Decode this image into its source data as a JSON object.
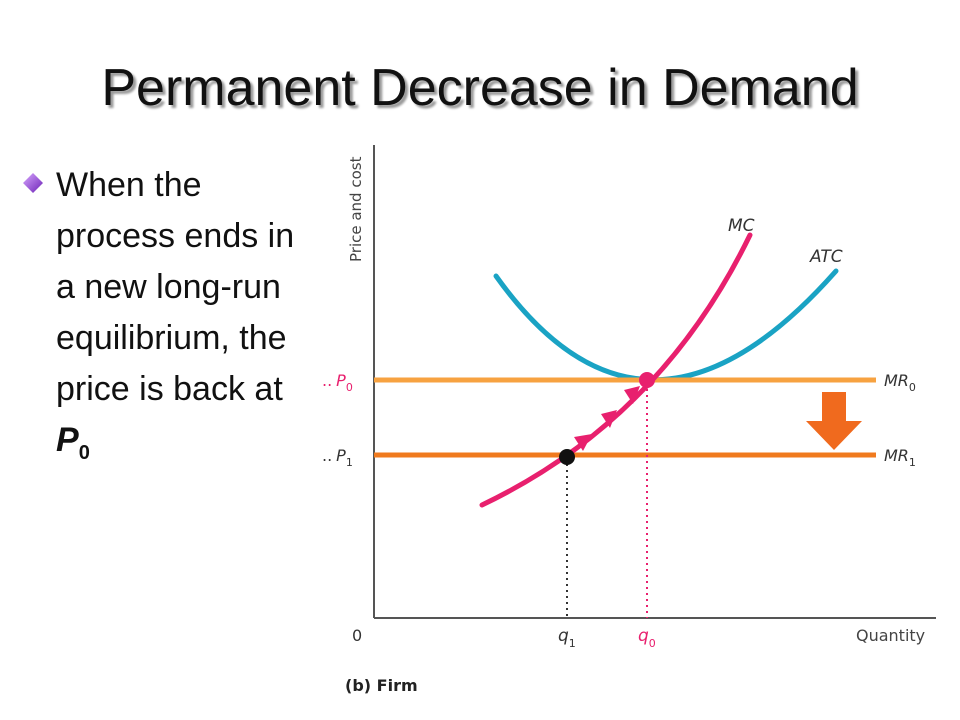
{
  "slide": {
    "title": "Permanent Decrease in Demand",
    "bullet": {
      "icon": "diamond-bullet-icon",
      "text_before": "When the process ends in a new long-run equilibrium, the price is back at ",
      "emphasis": "P",
      "subscript": "0"
    }
  },
  "diagram": {
    "y_axis_label": "Price and cost",
    "x_axis_label": "Quantity",
    "origin_label": "0",
    "curves": {
      "mc": "MC",
      "atc": "ATC",
      "mr0": "MR",
      "mr0_sub": "0",
      "mr1": "MR",
      "mr1_sub": "1"
    },
    "price_labels": {
      "p0": "P",
      "p0_sub": "0",
      "p1": "P",
      "p1_sub": "1",
      "prefix": ".."
    },
    "quantity_labels": {
      "q1": "q",
      "q1_sub": "1",
      "q0": "q",
      "q0_sub": "0"
    },
    "caption": "(b) Firm",
    "arrow_icon": "down-arrow-icon",
    "colors": {
      "mc": "#e8206e",
      "atc": "#1aa3c4",
      "mr0": "#f7a240",
      "mr1": "#f07a1e",
      "arrow": "#f06a1e",
      "axis": "#555555"
    }
  }
}
